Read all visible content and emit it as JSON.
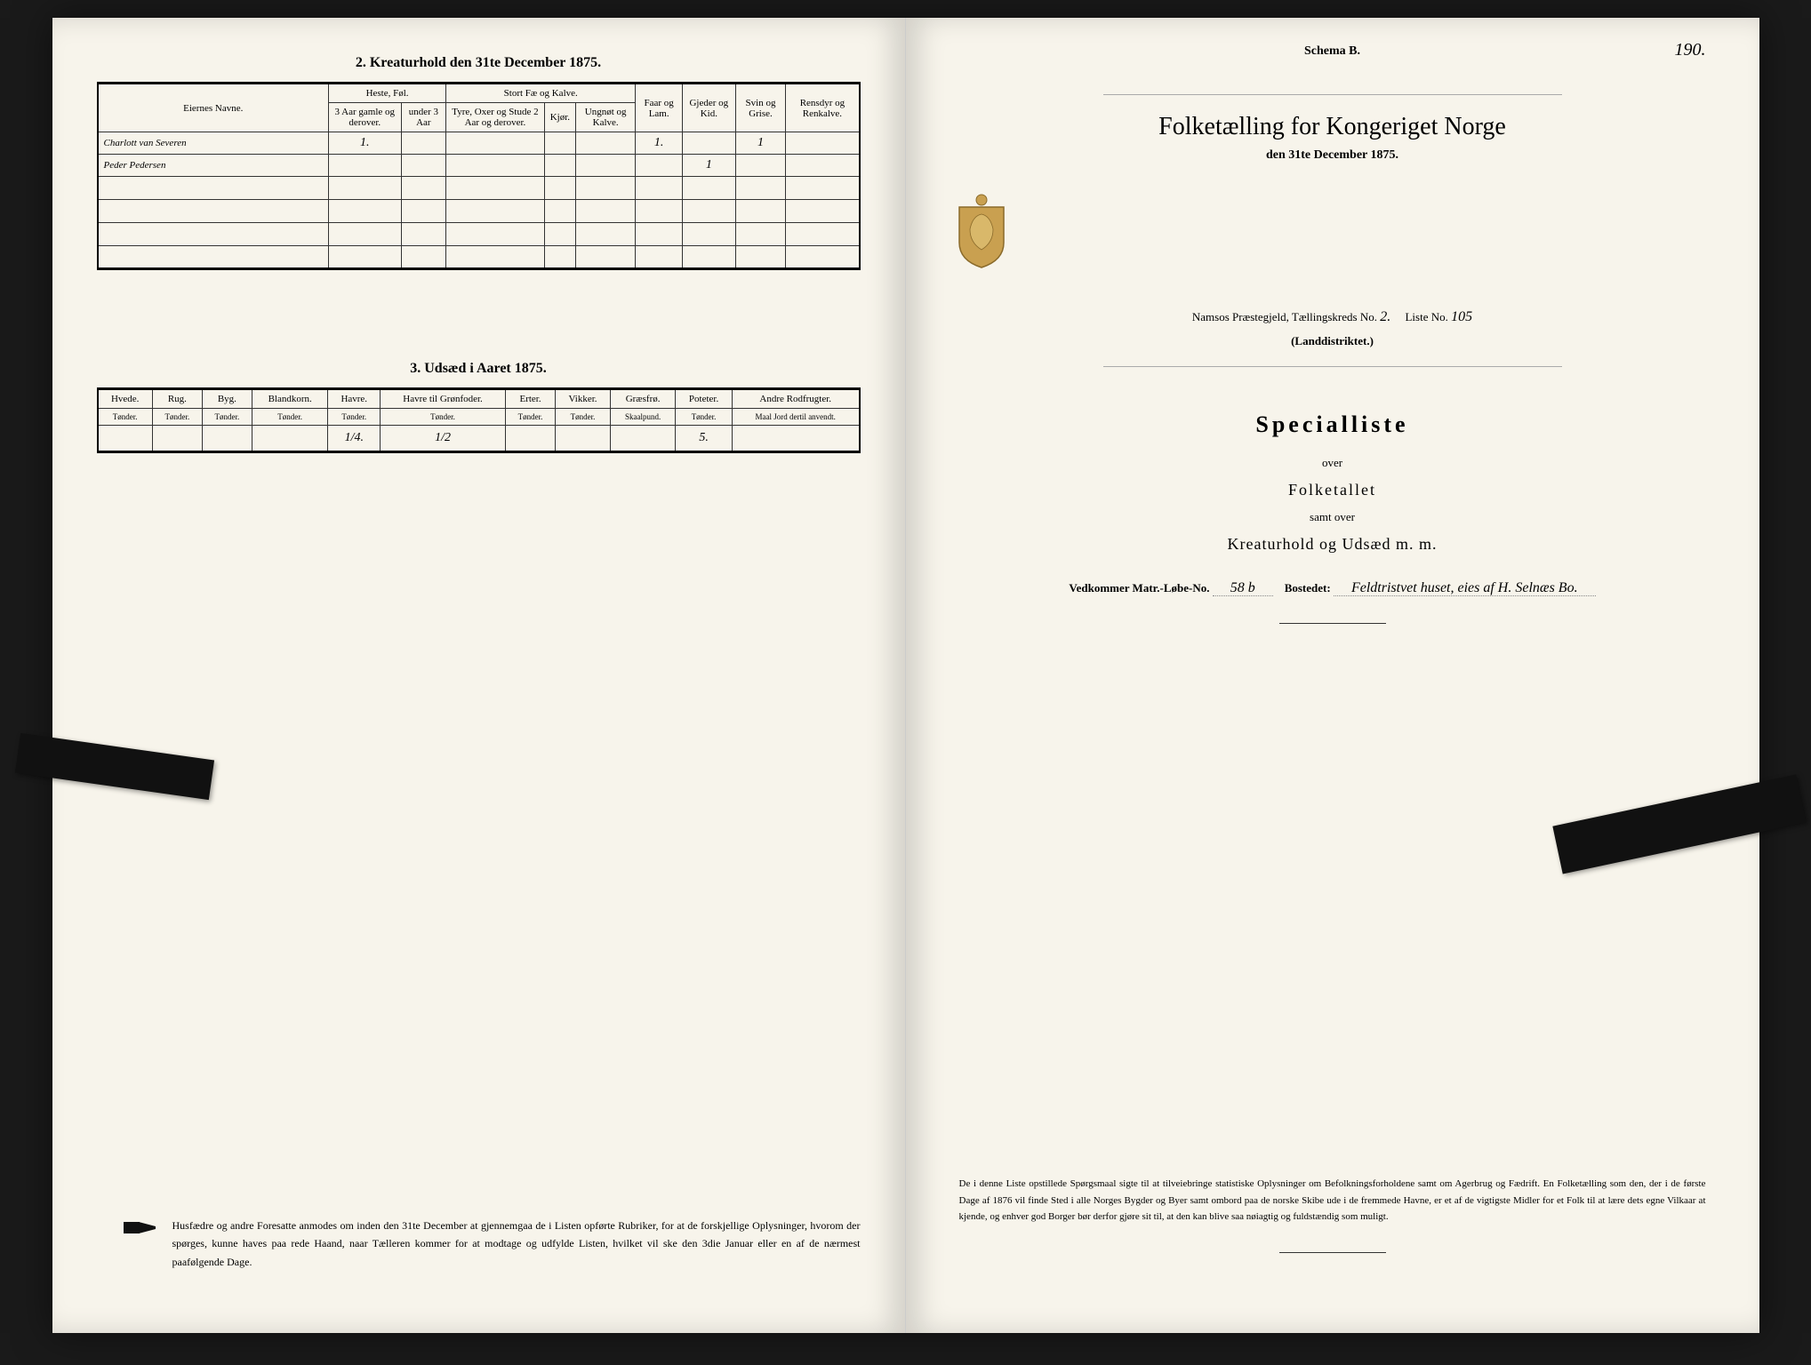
{
  "left": {
    "section2_title": "2.  Kreaturhold den 31te December 1875.",
    "kreatur": {
      "headers": {
        "name": "Eiernes Navne.",
        "heste": "Heste, Føl.",
        "heste_sub1": "3 Aar gamle og derover.",
        "heste_sub2": "under 3 Aar",
        "stort": "Stort Fæ og Kalve.",
        "stort_sub1": "Tyre, Oxer og Stude 2 Aar og derover.",
        "stort_sub2": "Kjør.",
        "stort_sub3": "Ungnøt og Kalve.",
        "faar": "Faar og Lam.",
        "gjeder": "Gjeder og Kid.",
        "svin": "Svin og Grise.",
        "ren": "Rensdyr og Renkalve."
      },
      "rows": [
        {
          "name": "Charlott van Severen",
          "heste1": "1.",
          "heste2": "",
          "s1": "",
          "s2": "",
          "s3": "",
          "faar": "1.",
          "gjed": "",
          "svin": "1",
          "ren": ""
        },
        {
          "name": "Peder Pedersen",
          "heste1": "",
          "heste2": "",
          "s1": "",
          "s2": "",
          "s3": "",
          "faar": "",
          "gjed": "1",
          "svin": "",
          "ren": ""
        }
      ]
    },
    "section3_title": "3.  Udsæd i Aaret 1875.",
    "udsaed": {
      "cols": [
        "Hvede.",
        "Rug.",
        "Byg.",
        "Blandkorn.",
        "Havre.",
        "Havre til Grønfoder.",
        "Erter.",
        "Vikker.",
        "Græsfrø.",
        "Poteter.",
        "Andre Rodfrugter."
      ],
      "unit": "Tønder.",
      "unit_skaal": "Skaalpund.",
      "unit_maal": "Maal Jord dertil anvendt.",
      "unit_poteter": "Tønder.",
      "values": [
        "",
        "",
        "",
        "",
        "1/4.",
        "1/2",
        "",
        "",
        "",
        "5.",
        ""
      ]
    },
    "footer": "Husfædre og andre Foresatte anmodes om inden den 31te December at gjennemgaa de i Listen opførte Rubriker, for at de forskjellige Oplysninger, hvorom der spørges, kunne haves paa rede Haand, naar Tælleren kommer for at modtage og udfylde Listen, hvilket vil ske den 3die Januar eller en af de nærmest paafølgende Dage."
  },
  "right": {
    "page_no": "190.",
    "schema": "Schema B.",
    "title": "Folketælling for Kongeriget Norge",
    "subtitle": "den 31te December 1875.",
    "district1_a": "Namsos  Præstegjeld,  Tællingskreds No.",
    "district1_fill1": "2.",
    "district1_b": "Liste No.",
    "district1_fill2": "105",
    "district2": "(Landdistriktet.)",
    "specialliste": "Specialliste",
    "over": "over",
    "folketallet": "Folketallet",
    "samt": "samt over",
    "kreatur_line": "Kreaturhold og Udsæd m. m.",
    "vedkommer_a": "Vedkommer Matr.-Løbe-No.",
    "vedkommer_fill1": "58 b",
    "vedkommer_b": "Bostedet:",
    "vedkommer_fill2": "Feldtristvet huset, eies af H. Selnæs Bo.",
    "body": "De i denne Liste opstillede Spørgsmaal sigte til at tilveiebringe statistiske Oplysninger om Befolkningsforholdene samt om Agerbrug og Fædrift. En Folketælling som den, der i de første Dage af 1876 vil finde Sted i alle Norges Bygder og Byer samt ombord paa de norske Skibe ude i de fremmede Havne, er et af de vigtigste Midler for et Folk til at lære dets egne Vilkaar at kjende, og enhver god Borger bør derfor gjøre sit til, at den kan blive saa nøiagtig og fuldstændig som muligt."
  },
  "colors": {
    "paper": "#f7f4eb",
    "ink": "#222222"
  }
}
